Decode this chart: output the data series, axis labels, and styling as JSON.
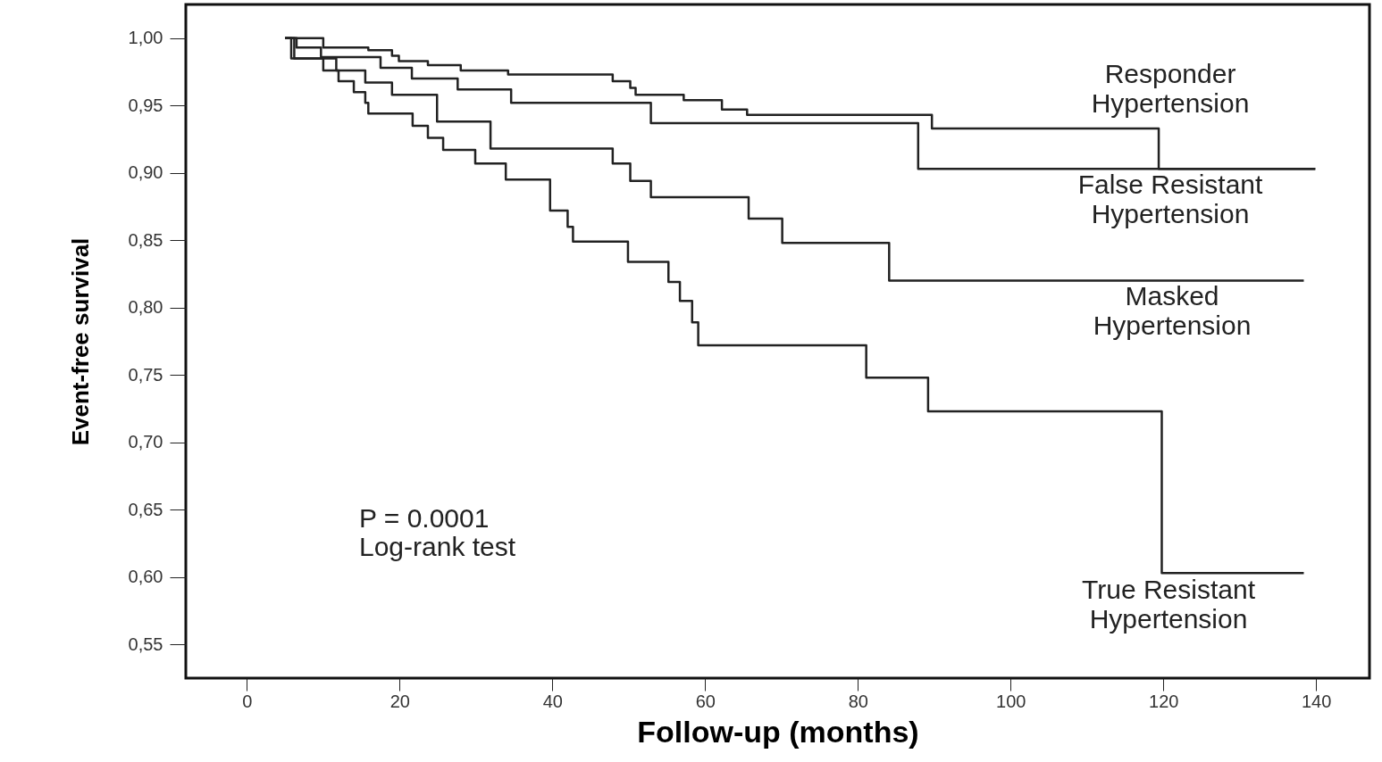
{
  "chart_data": {
    "type": "step",
    "xlabel": "Follow-up (months)",
    "ylabel": "Event-free survival",
    "xlim": [
      -8,
      147
    ],
    "ylim": [
      0.525,
      1.025
    ],
    "xticks": [
      0,
      20,
      40,
      60,
      80,
      100,
      120,
      140
    ],
    "yticks": [
      {
        "value": 0.55,
        "label": "0,55"
      },
      {
        "value": 0.6,
        "label": "0,60"
      },
      {
        "value": 0.65,
        "label": "0,65"
      },
      {
        "value": 0.7,
        "label": "0,70"
      },
      {
        "value": 0.75,
        "label": "0,75"
      },
      {
        "value": 0.8,
        "label": "0,80"
      },
      {
        "value": 0.85,
        "label": "0,85"
      },
      {
        "value": 0.9,
        "label": "0,90"
      },
      {
        "value": 0.95,
        "label": "0,95"
      },
      {
        "value": 1.0,
        "label": "1,00"
      }
    ],
    "grid": false,
    "annotations": [
      "P = 0.0001",
      "Log-rank test"
    ],
    "series": [
      {
        "name": "Responder Hypertension",
        "color": "#222222",
        "x": [
          5,
          10,
          15.9,
          19,
          19.9,
          23.7,
          28,
          34.2,
          47.9,
          50.2,
          50.9,
          57.2,
          62.2,
          65.5,
          89.7,
          119.4,
          139.9
        ],
        "values": [
          1.0,
          0.993,
          0.991,
          0.987,
          0.983,
          0.98,
          0.976,
          0.973,
          0.968,
          0.963,
          0.958,
          0.954,
          0.947,
          0.943,
          0.933,
          0.903,
          0.903
        ]
      },
      {
        "name": "False Resistant Hypertension",
        "color": "#222222",
        "x": [
          5,
          6.5,
          9.7,
          17.5,
          21.6,
          27.6,
          34.6,
          52.9,
          87.9,
          139.9
        ],
        "values": [
          1.0,
          0.993,
          0.986,
          0.978,
          0.97,
          0.962,
          0.952,
          0.937,
          0.903,
          0.903
        ]
      },
      {
        "name": "Masked Hypertension",
        "color": "#222222",
        "x": [
          5,
          5.8,
          11.7,
          15.5,
          19,
          24.9,
          31.9,
          47.9,
          50.2,
          52.9,
          65.7,
          70.1,
          84.1,
          138.4
        ],
        "values": [
          1.0,
          0.985,
          0.976,
          0.967,
          0.958,
          0.938,
          0.918,
          0.907,
          0.894,
          0.882,
          0.866,
          0.848,
          0.82,
          0.82
        ]
      },
      {
        "name": "True Resistant Hypertension",
        "color": "#222222",
        "x": [
          5,
          6.2,
          10,
          12,
          14,
          15.5,
          15.9,
          21.7,
          23.7,
          25.7,
          29.9,
          33.9,
          39.7,
          42,
          42.7,
          49.9,
          55.2,
          56.7,
          58.3,
          59.1,
          81.1,
          89.2,
          119.8,
          138.4
        ],
        "values": [
          1.0,
          0.985,
          0.976,
          0.968,
          0.96,
          0.952,
          0.944,
          0.935,
          0.926,
          0.917,
          0.907,
          0.895,
          0.872,
          0.86,
          0.849,
          0.834,
          0.819,
          0.805,
          0.789,
          0.772,
          0.748,
          0.723,
          0.603,
          0.603
        ]
      }
    ]
  }
}
